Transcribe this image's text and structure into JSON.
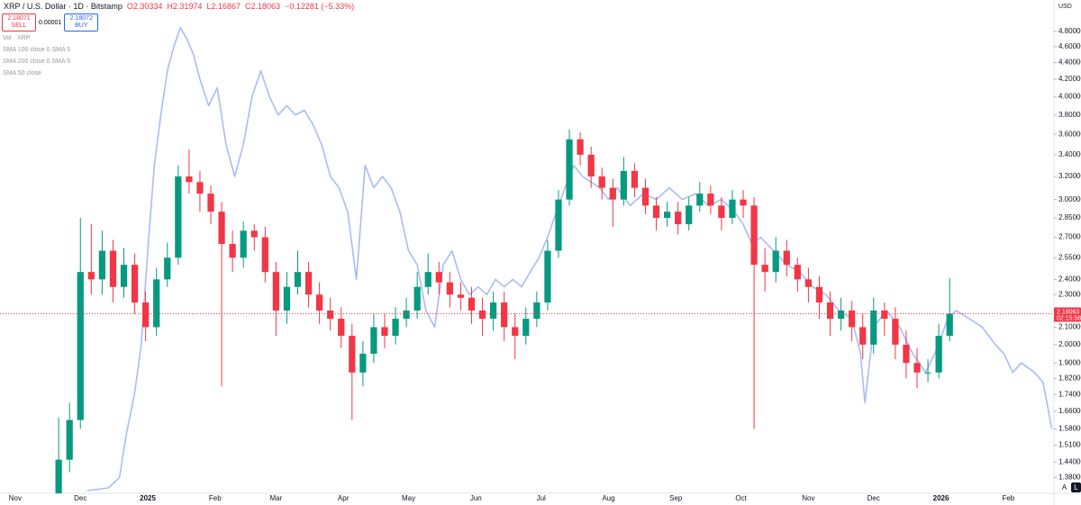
{
  "header": {
    "symbol": "XRP / U.S. Dollar · 1D · Bitstamp",
    "ohlc": [
      "O2.30334",
      "H2.31974",
      "L2.16867",
      "C2.18063",
      "−0.12281 (−5.33%)"
    ]
  },
  "trade": {
    "sell_price": "2.18071",
    "sell": "SELL",
    "spread": "0.00001",
    "buy_price": "2.18072",
    "buy": "BUY"
  },
  "indicators": [
    "Vol · XRP",
    "SMA 100 close 0 SMA 5",
    "SMA 200 close 0 SMA 5",
    "SMA 50 close"
  ],
  "currency": "USD",
  "buttons": [
    "A",
    "L"
  ],
  "chart_data": {
    "type": "candlestick",
    "log": true,
    "grid": false,
    "up_color": "#089981",
    "down_color": "#f23645",
    "ylim": [
      1.32,
      5.24
    ],
    "yticks": [
      {
        "value": 1.38,
        "label": "1.38000"
      },
      {
        "value": 1.44,
        "label": "1.44000"
      },
      {
        "value": 1.51,
        "label": "1.51000"
      },
      {
        "value": 1.58,
        "label": "1.58000"
      },
      {
        "value": 1.66,
        "label": "1.66000"
      },
      {
        "value": 1.74,
        "label": "1.74000"
      },
      {
        "value": 1.82,
        "label": "1.82000"
      },
      {
        "value": 1.9,
        "label": "1.90000"
      },
      {
        "value": 2.0,
        "label": "2.00000"
      },
      {
        "value": 2.1,
        "label": "2.10000"
      },
      {
        "value": 2.3,
        "label": "2.30000"
      },
      {
        "value": 2.4,
        "label": "2.40000"
      },
      {
        "value": 2.55,
        "label": "2.55000"
      },
      {
        "value": 2.7,
        "label": "2.70000"
      },
      {
        "value": 2.85,
        "label": "2.85000"
      },
      {
        "value": 3.0,
        "label": "3.00000"
      },
      {
        "value": 3.2,
        "label": "3.20000"
      },
      {
        "value": 3.4,
        "label": "3.40000"
      },
      {
        "value": 3.6,
        "label": "3.60000"
      },
      {
        "value": 3.8,
        "label": "3.80000"
      },
      {
        "value": 4.0,
        "label": "4.00000"
      },
      {
        "value": 4.2,
        "label": "4.20000"
      },
      {
        "value": 4.4,
        "label": "4.40000"
      },
      {
        "value": 4.6,
        "label": "4.60000"
      },
      {
        "value": 4.8,
        "label": "4.80000"
      }
    ],
    "xlim": [
      0,
      485
    ],
    "xticks": [
      {
        "value": 7,
        "label": "Nov"
      },
      {
        "value": 37,
        "label": "Dec"
      },
      {
        "value": 68,
        "label": "2025"
      },
      {
        "value": 99,
        "label": "Feb"
      },
      {
        "value": 127,
        "label": "Mar"
      },
      {
        "value": 158,
        "label": "Apr"
      },
      {
        "value": 188,
        "label": "May"
      },
      {
        "value": 219,
        "label": "Jun"
      },
      {
        "value": 249,
        "label": "Jul"
      },
      {
        "value": 280,
        "label": "Aug"
      },
      {
        "value": 311,
        "label": "Sep"
      },
      {
        "value": 341,
        "label": "Oct"
      },
      {
        "value": 372,
        "label": "Nov"
      },
      {
        "value": 402,
        "label": "Dec"
      },
      {
        "value": 433,
        "label": "2026"
      },
      {
        "value": 464,
        "label": "Feb"
      }
    ],
    "x": [
      27,
      32,
      37,
      42,
      47,
      52,
      57,
      62,
      67,
      72,
      77,
      82,
      87,
      92,
      97,
      102,
      107,
      112,
      117,
      122,
      127,
      132,
      137,
      142,
      147,
      152,
      157,
      162,
      167,
      172,
      177,
      182,
      187,
      192,
      197,
      202,
      207,
      212,
      217,
      222,
      227,
      232,
      237,
      242,
      247,
      252,
      257,
      262,
      267,
      272,
      277,
      282,
      287,
      292,
      297,
      302,
      307,
      312,
      317,
      322,
      327,
      332,
      337,
      342,
      347,
      352,
      357,
      362,
      367,
      372,
      377,
      382,
      387,
      392,
      397,
      402,
      407,
      412,
      417,
      422,
      427,
      432,
      437
    ],
    "open": [
      1.3,
      1.45,
      1.62,
      2.45,
      2.4,
      2.6,
      2.35,
      2.5,
      2.25,
      2.1,
      2.4,
      2.55,
      3.2,
      3.15,
      3.05,
      2.9,
      2.65,
      2.55,
      2.75,
      2.7,
      2.45,
      2.2,
      2.35,
      2.45,
      2.3,
      2.2,
      2.15,
      2.05,
      1.85,
      1.95,
      2.1,
      2.05,
      2.15,
      2.2,
      2.35,
      2.45,
      2.38,
      2.3,
      2.28,
      2.2,
      2.15,
      2.25,
      2.1,
      2.05,
      2.15,
      2.25,
      2.6,
      3.0,
      3.55,
      3.4,
      3.2,
      3.1,
      3.0,
      3.25,
      3.1,
      2.95,
      2.85,
      2.9,
      2.8,
      2.95,
      3.05,
      2.95,
      2.85,
      3.0,
      2.95,
      2.5,
      2.45,
      2.6,
      2.5,
      2.4,
      2.35,
      2.25,
      2.15,
      2.2,
      2.1,
      2.0,
      2.2,
      2.15,
      2.0,
      1.9,
      1.85,
      1.85,
      2.05
    ],
    "high": [
      1.63,
      1.7,
      2.85,
      2.8,
      2.75,
      2.68,
      2.62,
      2.58,
      2.32,
      2.48,
      2.66,
      3.3,
      3.45,
      3.25,
      3.12,
      2.98,
      2.75,
      2.82,
      2.8,
      2.78,
      2.52,
      2.45,
      2.6,
      2.52,
      2.38,
      2.28,
      2.22,
      2.12,
      2.02,
      2.18,
      2.18,
      2.22,
      2.28,
      2.45,
      2.58,
      2.52,
      2.45,
      2.38,
      2.35,
      2.28,
      2.32,
      2.32,
      2.18,
      2.22,
      2.32,
      2.68,
      3.08,
      3.65,
      3.62,
      3.48,
      3.28,
      3.18,
      3.38,
      3.32,
      3.18,
      3.02,
      2.98,
      2.98,
      3.02,
      3.15,
      3.12,
      3.02,
      3.08,
      3.08,
      3.02,
      2.62,
      2.7,
      2.68,
      2.55,
      2.48,
      2.42,
      2.32,
      2.28,
      2.26,
      2.18,
      2.28,
      2.25,
      2.22,
      2.08,
      1.98,
      1.92,
      2.12,
      2.41
    ],
    "low": [
      1.22,
      1.4,
      1.58,
      2.3,
      2.3,
      2.25,
      2.28,
      2.18,
      2.02,
      2.05,
      2.35,
      2.5,
      3.05,
      2.9,
      2.8,
      1.78,
      2.45,
      2.48,
      2.6,
      2.38,
      2.05,
      2.12,
      2.3,
      2.22,
      2.12,
      2.08,
      1.98,
      1.62,
      1.78,
      1.9,
      1.98,
      2.0,
      2.1,
      2.15,
      2.3,
      2.3,
      2.22,
      2.2,
      2.12,
      2.05,
      2.08,
      2.02,
      1.92,
      2.0,
      2.1,
      2.2,
      2.55,
      2.95,
      3.3,
      3.1,
      3.0,
      2.78,
      2.95,
      3.02,
      2.88,
      2.75,
      2.78,
      2.72,
      2.75,
      2.9,
      2.88,
      2.75,
      2.8,
      2.85,
      1.58,
      2.32,
      2.38,
      2.42,
      2.32,
      2.25,
      2.15,
      2.05,
      2.08,
      2.02,
      1.92,
      1.95,
      2.05,
      1.92,
      1.82,
      1.77,
      1.8,
      1.82,
      2.02
    ],
    "close": [
      1.45,
      1.62,
      2.45,
      2.4,
      2.6,
      2.35,
      2.5,
      2.25,
      2.1,
      2.4,
      2.55,
      3.2,
      3.15,
      3.05,
      2.9,
      2.65,
      2.55,
      2.75,
      2.7,
      2.45,
      2.2,
      2.35,
      2.45,
      2.3,
      2.2,
      2.15,
      2.05,
      1.85,
      1.95,
      2.1,
      2.05,
      2.15,
      2.2,
      2.35,
      2.45,
      2.38,
      2.3,
      2.28,
      2.2,
      2.15,
      2.25,
      2.1,
      2.05,
      2.15,
      2.25,
      2.6,
      3.0,
      3.55,
      3.4,
      3.2,
      3.1,
      3.0,
      3.25,
      3.1,
      2.95,
      2.85,
      2.9,
      2.8,
      2.95,
      3.05,
      2.95,
      2.85,
      3.0,
      2.95,
      2.5,
      2.45,
      2.6,
      2.5,
      2.4,
      2.35,
      2.25,
      2.15,
      2.2,
      2.1,
      2.0,
      2.2,
      2.15,
      2.0,
      1.9,
      1.85,
      1.85,
      2.05,
      2.18
    ],
    "overlay": {
      "color": "#a9bcf5",
      "x": [
        40,
        50,
        55,
        58,
        62,
        65,
        68,
        71,
        74,
        77,
        80,
        83,
        86,
        89,
        92,
        96,
        100,
        104,
        108,
        112,
        116,
        120,
        124,
        128,
        132,
        136,
        140,
        144,
        148,
        152,
        156,
        160,
        164,
        168,
        172,
        176,
        180,
        184,
        188,
        192,
        196,
        200,
        204,
        208,
        212,
        216,
        220,
        224,
        228,
        232,
        236,
        240,
        244,
        248,
        252,
        256,
        260,
        264,
        268,
        272,
        276,
        280,
        284,
        290,
        296,
        302,
        308,
        314,
        320,
        326,
        332,
        338,
        342,
        346,
        350,
        356,
        362,
        368,
        374,
        380,
        386,
        392,
        396,
        398,
        402,
        408,
        414,
        420,
        426,
        432,
        436,
        440,
        446,
        452,
        458,
        462,
        466,
        470,
        476,
        480,
        484
      ],
      "values": [
        1.33,
        1.34,
        1.38,
        1.55,
        1.75,
        2.0,
        2.6,
        3.3,
        3.8,
        4.3,
        4.6,
        4.85,
        4.7,
        4.5,
        4.2,
        3.9,
        4.1,
        3.5,
        3.2,
        3.5,
        4.0,
        4.3,
        4.0,
        3.8,
        3.9,
        3.8,
        3.85,
        3.7,
        3.5,
        3.2,
        3.1,
        2.9,
        2.4,
        3.3,
        3.1,
        3.2,
        3.1,
        2.9,
        2.6,
        2.5,
        2.2,
        2.1,
        2.5,
        2.6,
        2.4,
        2.3,
        2.35,
        2.3,
        2.4,
        2.35,
        2.4,
        2.35,
        2.45,
        2.55,
        2.7,
        2.9,
        3.1,
        3.3,
        3.2,
        3.15,
        3.1,
        3.0,
        3.1,
        2.95,
        3.05,
        3.0,
        3.1,
        3.0,
        3.05,
        2.95,
        3.0,
        2.9,
        2.8,
        2.65,
        2.7,
        2.6,
        2.5,
        2.45,
        2.35,
        2.3,
        2.2,
        2.15,
        1.95,
        1.7,
        2.1,
        2.2,
        2.1,
        1.95,
        1.85,
        2.0,
        2.15,
        2.2,
        2.15,
        2.1,
        2.0,
        1.95,
        1.85,
        1.9,
        1.85,
        1.8,
        1.58
      ]
    },
    "last_price": 2.18063,
    "countdown": "02:15:58"
  }
}
